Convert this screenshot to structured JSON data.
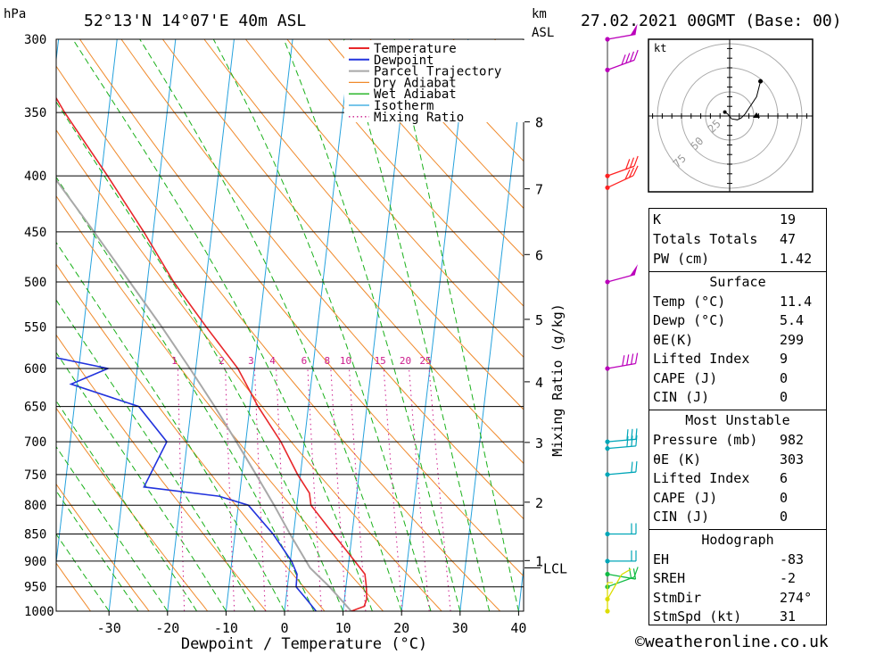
{
  "header": {
    "pressure_unit": "hPa",
    "location": "52°13'N 14°07'E 40m ASL",
    "km_label": "km",
    "asl_label": "ASL",
    "datetime": "27.02.2021 00GMT (Base: 00)"
  },
  "chart_data": {
    "type": "line",
    "title": "52°13'N 14°07'E 40m ASL",
    "xlabel": "Dewpoint / Temperature (°C)",
    "ylabel": "hPa",
    "right_axis_label": "Mixing Ratio (g/kg)",
    "xlim": [
      -40,
      40
    ],
    "ylim": [
      1000,
      300
    ],
    "y_scale": "log",
    "skew": "skew-T (isotherms slanted)",
    "x_ticks": [
      "-30",
      "-20",
      "-10",
      "0",
      "10",
      "20",
      "30",
      "40"
    ],
    "pressure_levels": [
      "300",
      "350",
      "400",
      "450",
      "500",
      "550",
      "600",
      "650",
      "700",
      "750",
      "800",
      "850",
      "900",
      "950",
      "1000"
    ],
    "height_km_ticks": [
      {
        "km": "8",
        "p": 357
      },
      {
        "km": "7",
        "p": 411
      },
      {
        "km": "6",
        "p": 472
      },
      {
        "km": "5",
        "p": 541
      },
      {
        "km": "4",
        "p": 617
      },
      {
        "km": "3",
        "p": 701
      },
      {
        "km": "2",
        "p": 795
      },
      {
        "km": "1",
        "p": 899
      }
    ],
    "lcl": {
      "label": "LCL",
      "p": 913
    },
    "mixing_ratio_labels": [
      "1",
      "2",
      "3",
      "4",
      "6",
      "8",
      "10",
      "15",
      "20",
      "25"
    ],
    "legend": [
      "Temperature",
      "Dewpoint",
      "Parcel Trajectory",
      "Dry Adiabat",
      "Wet Adiabat",
      "Isotherm",
      "Mixing Ratio"
    ],
    "legend_placement": "top-center",
    "colors": {
      "temperature": "#e8272a",
      "dewpoint": "#2233dd",
      "parcel": "#a8a8a8",
      "dry_adiabat": "#f08a2c",
      "wet_adiabat": "#19b019",
      "isotherm": "#26a2dd",
      "mixing_ratio": "#cc1c8c"
    },
    "series": [
      {
        "name": "Temperature",
        "points": [
          [
            1000,
            11.4
          ],
          [
            990,
            13.5
          ],
          [
            975,
            13.8
          ],
          [
            950,
            13.5
          ],
          [
            925,
            13.0
          ],
          [
            900,
            11.0
          ],
          [
            850,
            6.8
          ],
          [
            800,
            2.4
          ],
          [
            780,
            1.9
          ],
          [
            750,
            -0.5
          ],
          [
            700,
            -4.0
          ],
          [
            650,
            -8.6
          ],
          [
            600,
            -12.8
          ],
          [
            550,
            -19.0
          ],
          [
            500,
            -25.5
          ],
          [
            450,
            -31.6
          ],
          [
            400,
            -38.9
          ],
          [
            350,
            -47.5
          ],
          [
            300,
            -56.3
          ]
        ]
      },
      {
        "name": "Dewpoint",
        "points": [
          [
            1000,
            5.4
          ],
          [
            975,
            3.5
          ],
          [
            950,
            1.5
          ],
          [
            925,
            1.4
          ],
          [
            900,
            0.2
          ],
          [
            850,
            -3.5
          ],
          [
            800,
            -8.3
          ],
          [
            785,
            -13.5
          ],
          [
            770,
            -26.5
          ],
          [
            700,
            -23.5
          ],
          [
            650,
            -29.0
          ],
          [
            620,
            -41.0
          ],
          [
            600,
            -35.0
          ],
          [
            570,
            -55.5
          ],
          [
            540,
            -52.0
          ],
          [
            520,
            -55.0
          ],
          [
            500,
            -63.0
          ],
          [
            485,
            -73.0
          ],
          [
            455,
            -62.5
          ],
          [
            425,
            -72.0
          ],
          [
            415,
            -71.0
          ],
          [
            395,
            -68.0
          ],
          [
            370,
            -65.0
          ],
          [
            360,
            -62.0
          ],
          [
            350,
            -63.5
          ],
          [
            345,
            -72.0
          ],
          [
            300,
            -78.0
          ]
        ]
      },
      {
        "name": "Parcel Trajectory",
        "points": [
          [
            1000,
            11.4
          ],
          [
            950,
            7.2
          ],
          [
            913,
            3.5
          ],
          [
            850,
            -0.6
          ],
          [
            800,
            -3.9
          ],
          [
            750,
            -7.6
          ],
          [
            700,
            -11.6
          ],
          [
            650,
            -16.0
          ],
          [
            600,
            -21.0
          ],
          [
            550,
            -26.6
          ],
          [
            500,
            -33.0
          ],
          [
            450,
            -40.1
          ],
          [
            400,
            -48.2
          ],
          [
            350,
            -57.4
          ],
          [
            300,
            -67.0
          ]
        ]
      }
    ],
    "wind_barbs": [
      {
        "p": 300,
        "dir": 260,
        "kt": 50
      },
      {
        "p": 320,
        "dir": 250,
        "kt": 40
      },
      {
        "p": 400,
        "dir": 250,
        "kt": 30
      },
      {
        "p": 410,
        "dir": 245,
        "kt": 30
      },
      {
        "p": 500,
        "dir": 255,
        "kt": 50
      },
      {
        "p": 600,
        "dir": 260,
        "kt": 40
      },
      {
        "p": 700,
        "dir": 265,
        "kt": 30
      },
      {
        "p": 710,
        "dir": 265,
        "kt": 30
      },
      {
        "p": 750,
        "dir": 265,
        "kt": 20
      },
      {
        "p": 850,
        "dir": 270,
        "kt": 20
      },
      {
        "p": 900,
        "dir": 270,
        "kt": 20
      },
      {
        "p": 925,
        "dir": 280,
        "kt": 20
      },
      {
        "p": 950,
        "dir": 250,
        "kt": 10
      },
      {
        "p": 975,
        "dir": 210,
        "kt": 10
      },
      {
        "p": 1000,
        "dir": 180,
        "kt": 5
      }
    ],
    "hodograph": {
      "unit": "kt",
      "ring_labels": [
        "25",
        "50",
        "75"
      ],
      "trace": [
        [
          -5,
          4
        ],
        [
          -2,
          2
        ],
        [
          2,
          -3
        ],
        [
          8,
          -4
        ],
        [
          12,
          -2
        ],
        [
          16,
          2
        ],
        [
          28,
          20
        ],
        [
          32,
          36
        ]
      ]
    }
  },
  "indices": [
    {
      "label": "K",
      "value": "19"
    },
    {
      "label": "Totals Totals",
      "value": "47"
    },
    {
      "label": "PW (cm)",
      "value": "1.42"
    }
  ],
  "surface": {
    "title": "Surface",
    "rows": [
      {
        "label": "Temp (°C)",
        "value": "11.4"
      },
      {
        "label": "Dewp (°C)",
        "value": "5.4"
      },
      {
        "label": "θE(K)",
        "value": "299"
      },
      {
        "label": "Lifted Index",
        "value": "9"
      },
      {
        "label": "CAPE (J)",
        "value": "0"
      },
      {
        "label": "CIN (J)",
        "value": "0"
      }
    ]
  },
  "most_unstable": {
    "title": "Most Unstable",
    "rows": [
      {
        "label": "Pressure (mb)",
        "value": "982"
      },
      {
        "label": "θE (K)",
        "value": "303"
      },
      {
        "label": "Lifted Index",
        "value": "6"
      },
      {
        "label": "CAPE (J)",
        "value": "0"
      },
      {
        "label": "CIN (J)",
        "value": "0"
      }
    ]
  },
  "hodograph_table": {
    "title": "Hodograph",
    "rows": [
      {
        "label": "EH",
        "value": "-83"
      },
      {
        "label": "SREH",
        "value": "-2"
      },
      {
        "label": "StmDir",
        "value": "274°"
      },
      {
        "label": "StmSpd (kt)",
        "value": "31"
      }
    ]
  },
  "footer": {
    "credit": "©weatheronline.co.uk"
  }
}
